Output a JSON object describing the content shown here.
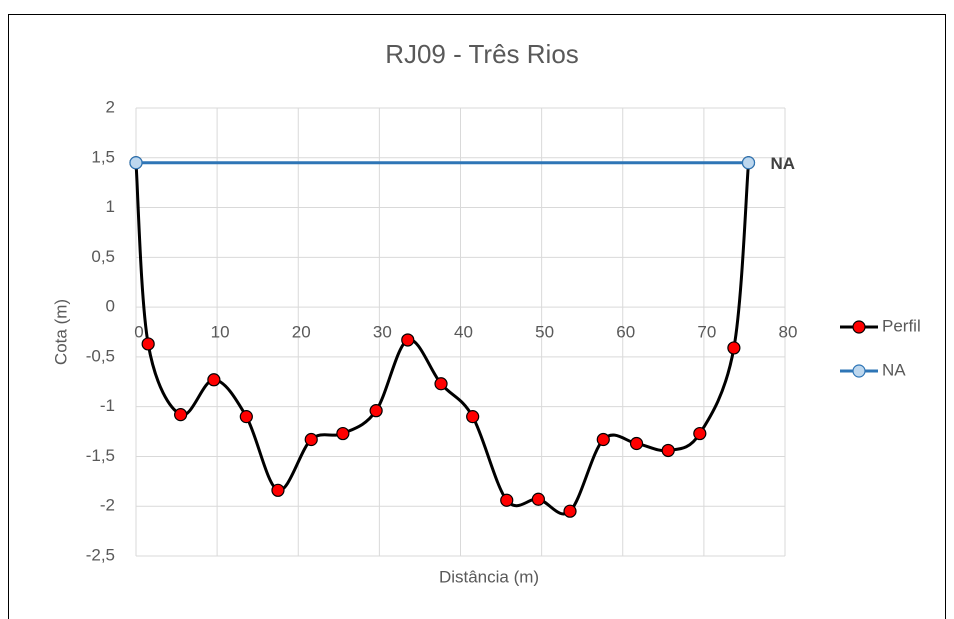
{
  "chart_data": {
    "type": "line",
    "title": "RJ09 - Três Rios",
    "x_label": "Distância (m)",
    "y_label": "Cota (m)",
    "xlim": [
      0,
      80
    ],
    "xticks": [
      0,
      10,
      20,
      30,
      40,
      50,
      60,
      70,
      80
    ],
    "ylim": [
      -2.5,
      2
    ],
    "yticks": [
      {
        "value": -2.5,
        "label": "-2,5"
      },
      -2,
      {
        "value": -1.5,
        "label": "-1,5"
      },
      -1,
      {
        "value": -0.5,
        "label": "-0,5"
      },
      0,
      {
        "value": 0.5,
        "label": "0,5"
      },
      1,
      {
        "value": 1.5,
        "label": "1,5"
      },
      2
    ],
    "grid": true,
    "legend": "right",
    "series": [
      {
        "name": "Perfil",
        "color": "#000000",
        "marker_color": "#ff0000",
        "smooth": true,
        "x": [
          0,
          1.5,
          5.5,
          9.6,
          13.6,
          17.5,
          21.6,
          25.5,
          29.6,
          33.5,
          37.6,
          41.5,
          45.7,
          49.6,
          53.5,
          57.6,
          61.7,
          65.6,
          69.5,
          73.7,
          75.5
        ],
        "values": [
          1.45,
          -0.37,
          -1.08,
          -0.73,
          -1.1,
          -1.84,
          -1.33,
          -1.27,
          -1.04,
          -0.33,
          -0.77,
          -1.1,
          -1.94,
          -1.93,
          -2.05,
          -1.33,
          -1.37,
          -1.44,
          -1.27,
          -0.41,
          1.45
        ]
      },
      {
        "name": "NA",
        "color": "#2e75b6",
        "marker_color": "#bdd7ee",
        "smooth": false,
        "x": [
          0,
          75.5
        ],
        "values": [
          1.45,
          1.45
        ]
      }
    ],
    "annotation": "NA"
  }
}
